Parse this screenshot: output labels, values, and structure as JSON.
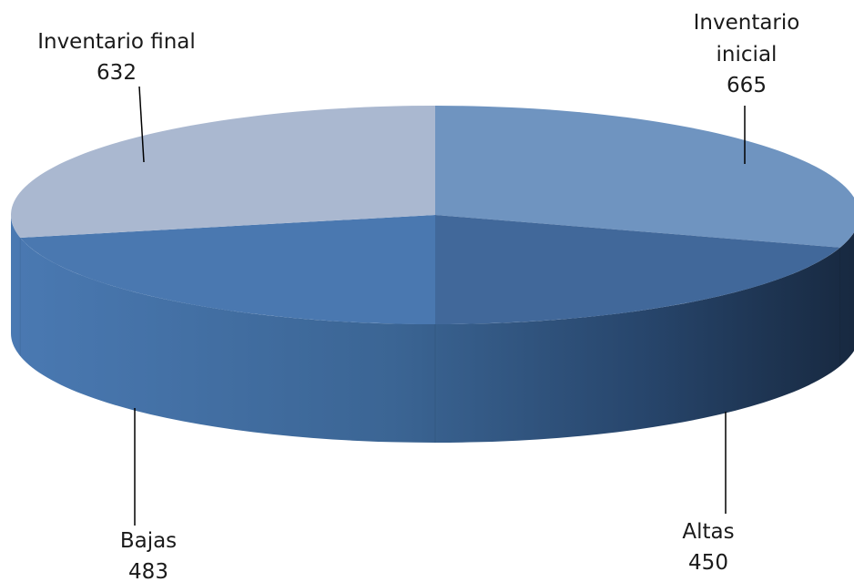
{
  "chart_data": {
    "type": "pie",
    "style": "3d",
    "categories": [
      "Inventario inicial",
      "Altas",
      "Bajas",
      "Inventario final"
    ],
    "values": [
      665,
      450,
      483,
      632
    ],
    "colors": [
      "#6f94c0",
      "#41689a",
      "#4a78b0",
      "#aab8d0"
    ],
    "legend": "none",
    "labels": [
      {
        "lines": [
          "Inventario",
          "inicial"
        ],
        "value": "665"
      },
      {
        "lines": [
          "Altas"
        ],
        "value": "450"
      },
      {
        "lines": [
          "Bajas"
        ],
        "value": "483"
      },
      {
        "lines": [
          "Inventario final"
        ],
        "value": "632"
      }
    ]
  }
}
